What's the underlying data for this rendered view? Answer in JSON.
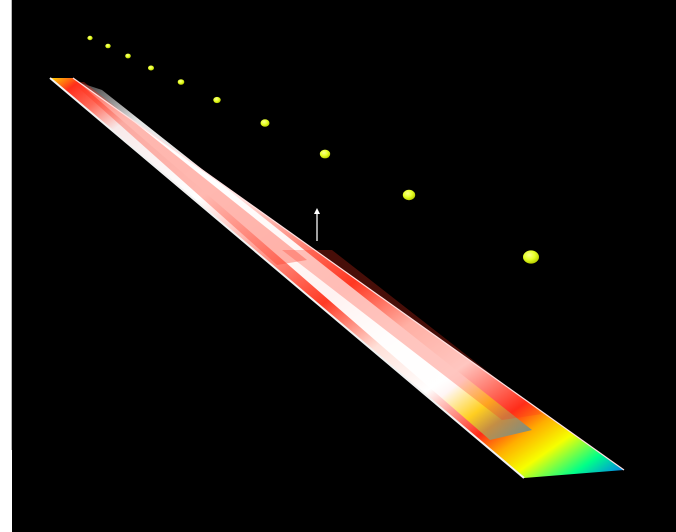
{
  "scene": {
    "background_color": "#000000",
    "strip_color_stops": [
      "#f3f3f3",
      "#ff2e1a",
      "#ffb000",
      "#ffff00",
      "#00ff7a",
      "#0066ff"
    ],
    "marker_color": "#e7ff2b",
    "marker_count": 10,
    "icons": {
      "vector_arrow": "up-arrow-icon",
      "markers": "sphere-marker-icon"
    }
  }
}
